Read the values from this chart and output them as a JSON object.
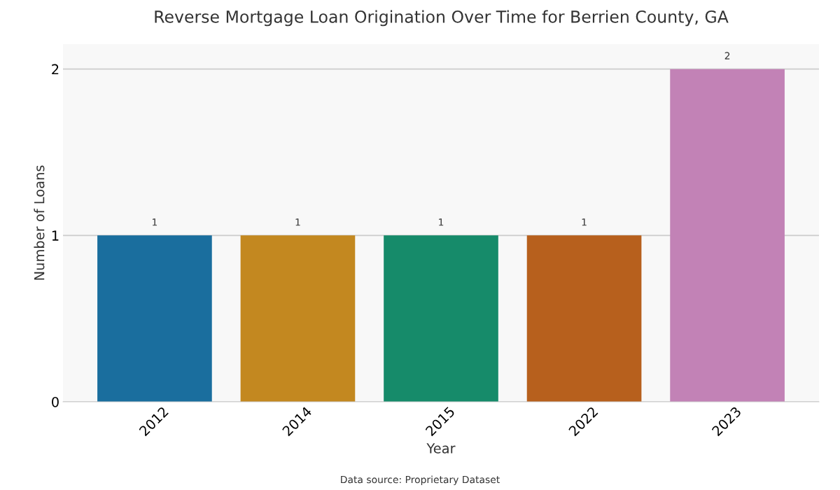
{
  "chart_data": {
    "type": "bar",
    "title": "Reverse Mortgage Loan Origination Over Time for Berrien County, GA",
    "xlabel": "Year",
    "ylabel": "Number of Loans",
    "categories": [
      "2012",
      "2014",
      "2015",
      "2022",
      "2023"
    ],
    "values": [
      1,
      1,
      1,
      1,
      2
    ],
    "colors": [
      "#1a6e9e",
      "#c38820",
      "#168b6a",
      "#b7601d",
      "#c282b6"
    ],
    "ylim": [
      0,
      2.15
    ],
    "yticks": [
      0,
      1,
      2
    ],
    "grid": "y",
    "data_labels": true,
    "annotations": [
      "Data source: Proprietary Dataset"
    ]
  }
}
